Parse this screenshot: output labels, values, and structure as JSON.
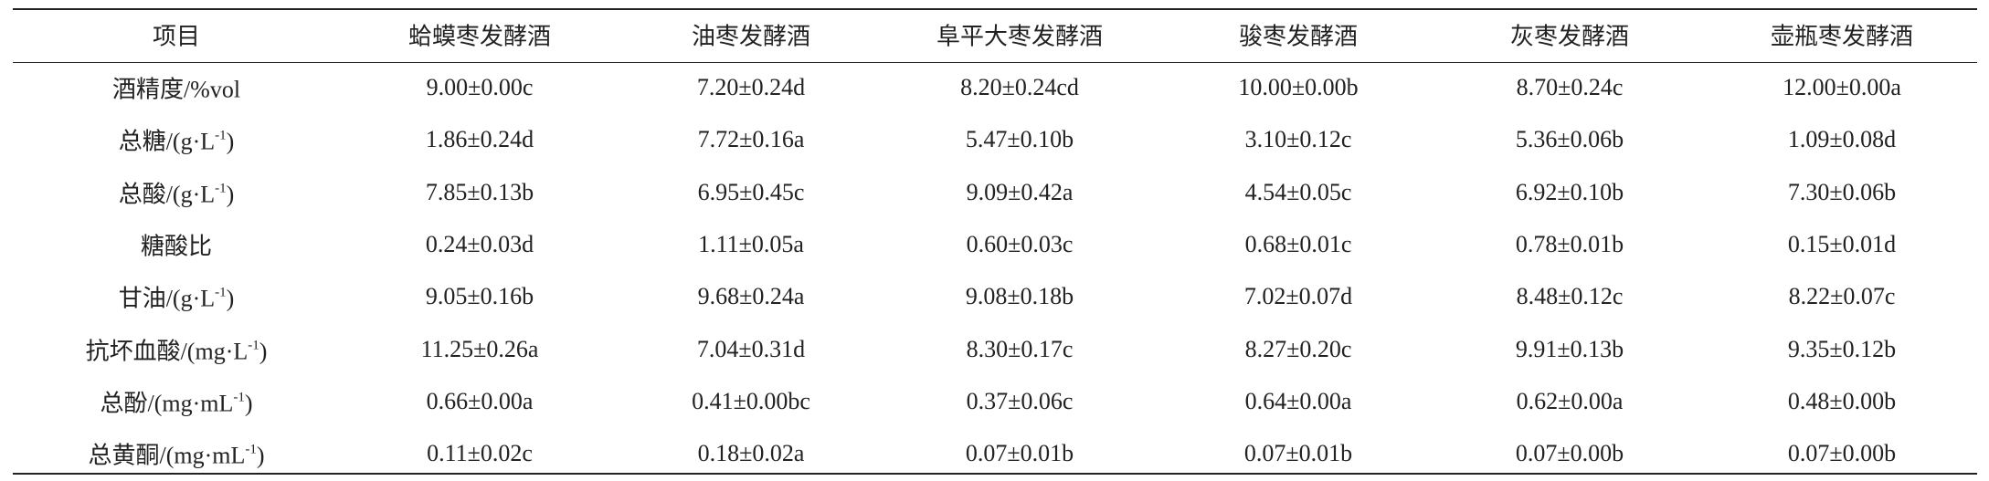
{
  "table": {
    "header": [
      "项目",
      "蛤蟆枣发酵酒",
      "油枣发酵酒",
      "阜平大枣发酵酒",
      "骏枣发酵酒",
      "灰枣发酵酒",
      "壶瓶枣发酵酒"
    ],
    "rows": [
      {
        "label": {
          "text": "酒精度/%vol"
        },
        "cells": [
          "9.00±0.00c",
          "7.20±0.24d",
          "8.20±0.24cd",
          "10.00±0.00b",
          "8.70±0.24c",
          "12.00±0.00a"
        ]
      },
      {
        "label": {
          "text": "总糖/(g·L",
          "sup": "-1",
          "after": ")"
        },
        "cells": [
          "1.86±0.24d",
          "7.72±0.16a",
          "5.47±0.10b",
          "3.10±0.12c",
          "5.36±0.06b",
          "1.09±0.08d"
        ]
      },
      {
        "label": {
          "text": "总酸/(g·L",
          "sup": "-1",
          "after": ")"
        },
        "cells": [
          "7.85±0.13b",
          "6.95±0.45c",
          "9.09±0.42a",
          "4.54±0.05c",
          "6.92±0.10b",
          "7.30±0.06b"
        ]
      },
      {
        "label": {
          "text": "糖酸比"
        },
        "cells": [
          "0.24±0.03d",
          "1.11±0.05a",
          "0.60±0.03c",
          "0.68±0.01c",
          "0.78±0.01b",
          "0.15±0.01d"
        ]
      },
      {
        "label": {
          "text": "甘油/(g·L",
          "sup": "-1",
          "after": ")"
        },
        "cells": [
          "9.05±0.16b",
          "9.68±0.24a",
          "9.08±0.18b",
          "7.02±0.07d",
          "8.48±0.12c",
          "8.22±0.07c"
        ]
      },
      {
        "label": {
          "text": "抗坏血酸/(mg·L",
          "sup": "-1",
          "after": ")"
        },
        "cells": [
          "11.25±0.26a",
          "7.04±0.31d",
          "8.30±0.17c",
          "8.27±0.20c",
          "9.91±0.13b",
          "9.35±0.12b"
        ]
      },
      {
        "label": {
          "text": "总酚/(mg·mL",
          "sup": "-1",
          "after": ")"
        },
        "cells": [
          "0.66±0.00a",
          "0.41±0.00bc",
          "0.37±0.06c",
          "0.64±0.00a",
          "0.62±0.00a",
          "0.48±0.00b"
        ]
      },
      {
        "label": {
          "text": "总黄酮/(mg·mL",
          "sup": "-1",
          "after": ")"
        },
        "cells": [
          "0.11±0.02c",
          "0.18±0.02a",
          "0.07±0.01b",
          "0.07±0.01b",
          "0.07±0.00b",
          "0.07±0.00b"
        ]
      }
    ]
  }
}
